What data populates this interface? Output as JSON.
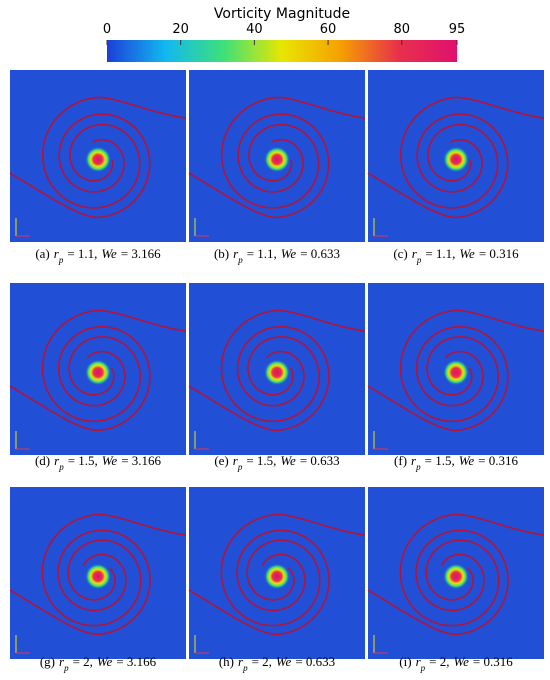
{
  "colorbar": {
    "title": "Vorticity Magnitude",
    "lim": [
      0,
      95
    ],
    "ticks": [
      0,
      20,
      40,
      60,
      80,
      95
    ],
    "colors": [
      "#1b3fd8",
      "#12b8f0",
      "#3ee07a",
      "#e8e600",
      "#f5a000",
      "#e8304c",
      "#e0106e"
    ]
  },
  "panels": [
    {
      "caption": [
        {
          "t": "(a)"
        },
        {
          "t": "r",
          "i": true
        },
        {
          "t": "p",
          "sub": true
        },
        {
          "t": "= 1.1,"
        },
        {
          "t": "We",
          "i": true
        },
        {
          "t": "= 3.166"
        }
      ]
    },
    {
      "caption": [
        {
          "t": "(b)"
        },
        {
          "t": "r",
          "i": true
        },
        {
          "t": "p",
          "sub": true
        },
        {
          "t": "= 1.1,"
        },
        {
          "t": "We",
          "i": true
        },
        {
          "t": "= 0.633"
        }
      ]
    },
    {
      "caption": [
        {
          "t": "(c)"
        },
        {
          "t": "r",
          "i": true
        },
        {
          "t": "p",
          "sub": true
        },
        {
          "t": "= 1.1,"
        },
        {
          "t": "We",
          "i": true
        },
        {
          "t": "= 0.316"
        }
      ]
    },
    {
      "caption": [
        {
          "t": "(d)"
        },
        {
          "t": "r",
          "i": true
        },
        {
          "t": "p",
          "sub": true
        },
        {
          "t": "= 1.5,"
        },
        {
          "t": "We",
          "i": true
        },
        {
          "t": "= 3.166"
        }
      ]
    },
    {
      "caption": [
        {
          "t": "(e)"
        },
        {
          "t": "r",
          "i": true
        },
        {
          "t": "p",
          "sub": true
        },
        {
          "t": "= 1.5,"
        },
        {
          "t": "We",
          "i": true
        },
        {
          "t": "= 0.633"
        }
      ]
    },
    {
      "caption": [
        {
          "t": "(f)"
        },
        {
          "t": "r",
          "i": true
        },
        {
          "t": "p",
          "sub": true
        },
        {
          "t": "= 1.5,"
        },
        {
          "t": "We",
          "i": true
        },
        {
          "t": "= 0.316"
        }
      ]
    },
    {
      "caption": [
        {
          "t": "(g)"
        },
        {
          "t": "r",
          "i": true
        },
        {
          "t": "p",
          "sub": true
        },
        {
          "t": "= 2,"
        },
        {
          "t": "We",
          "i": true
        },
        {
          "t": "= 3.166"
        }
      ]
    },
    {
      "caption": [
        {
          "t": "(h)"
        },
        {
          "t": "r",
          "i": true
        },
        {
          "t": "p",
          "sub": true
        },
        {
          "t": "= 2,"
        },
        {
          "t": "We",
          "i": true
        },
        {
          "t": "= 0.633"
        }
      ]
    },
    {
      "caption": [
        {
          "t": "(i)"
        },
        {
          "t": "r",
          "i": true
        },
        {
          "t": "p",
          "sub": true
        },
        {
          "t": "= 2,"
        },
        {
          "t": "We",
          "i": true
        },
        {
          "t": "= 0.316"
        }
      ]
    }
  ]
}
